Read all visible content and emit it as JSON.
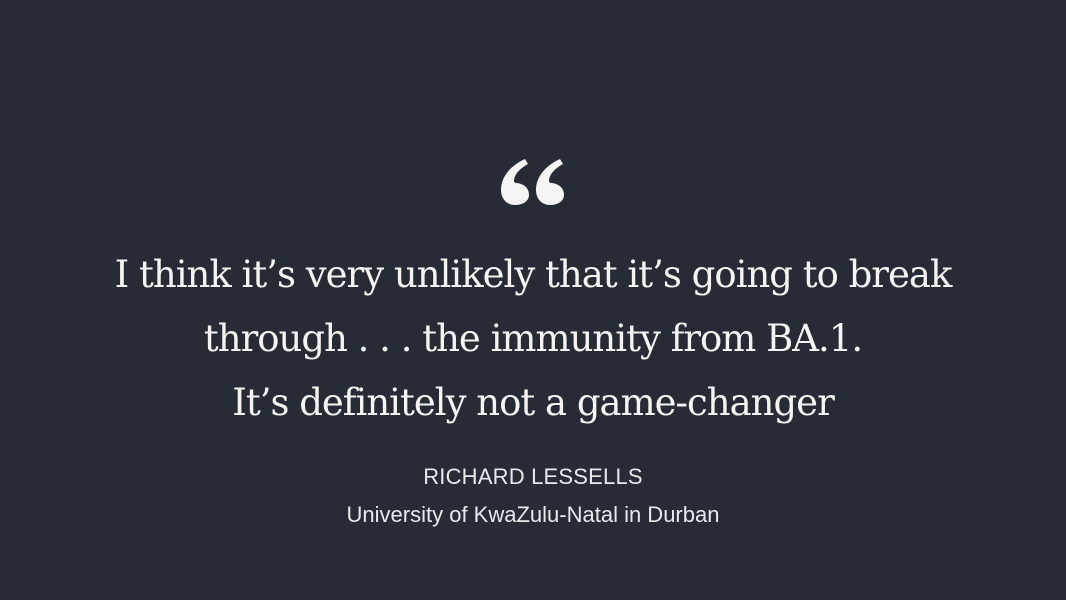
{
  "quote": {
    "icon": "quotation-mark-icon",
    "lines": [
      "I think it’s very unlikely that it’s going to break",
      "through . . . the immunity from BA.1.",
      "It’s definitely not a game-changer"
    ]
  },
  "attribution": {
    "name": "RICHARD LESSELLS",
    "affiliation": "University of KwaZulu-Natal in Durban"
  },
  "colors": {
    "background": "#262b35",
    "text": "#f4f4f2"
  }
}
